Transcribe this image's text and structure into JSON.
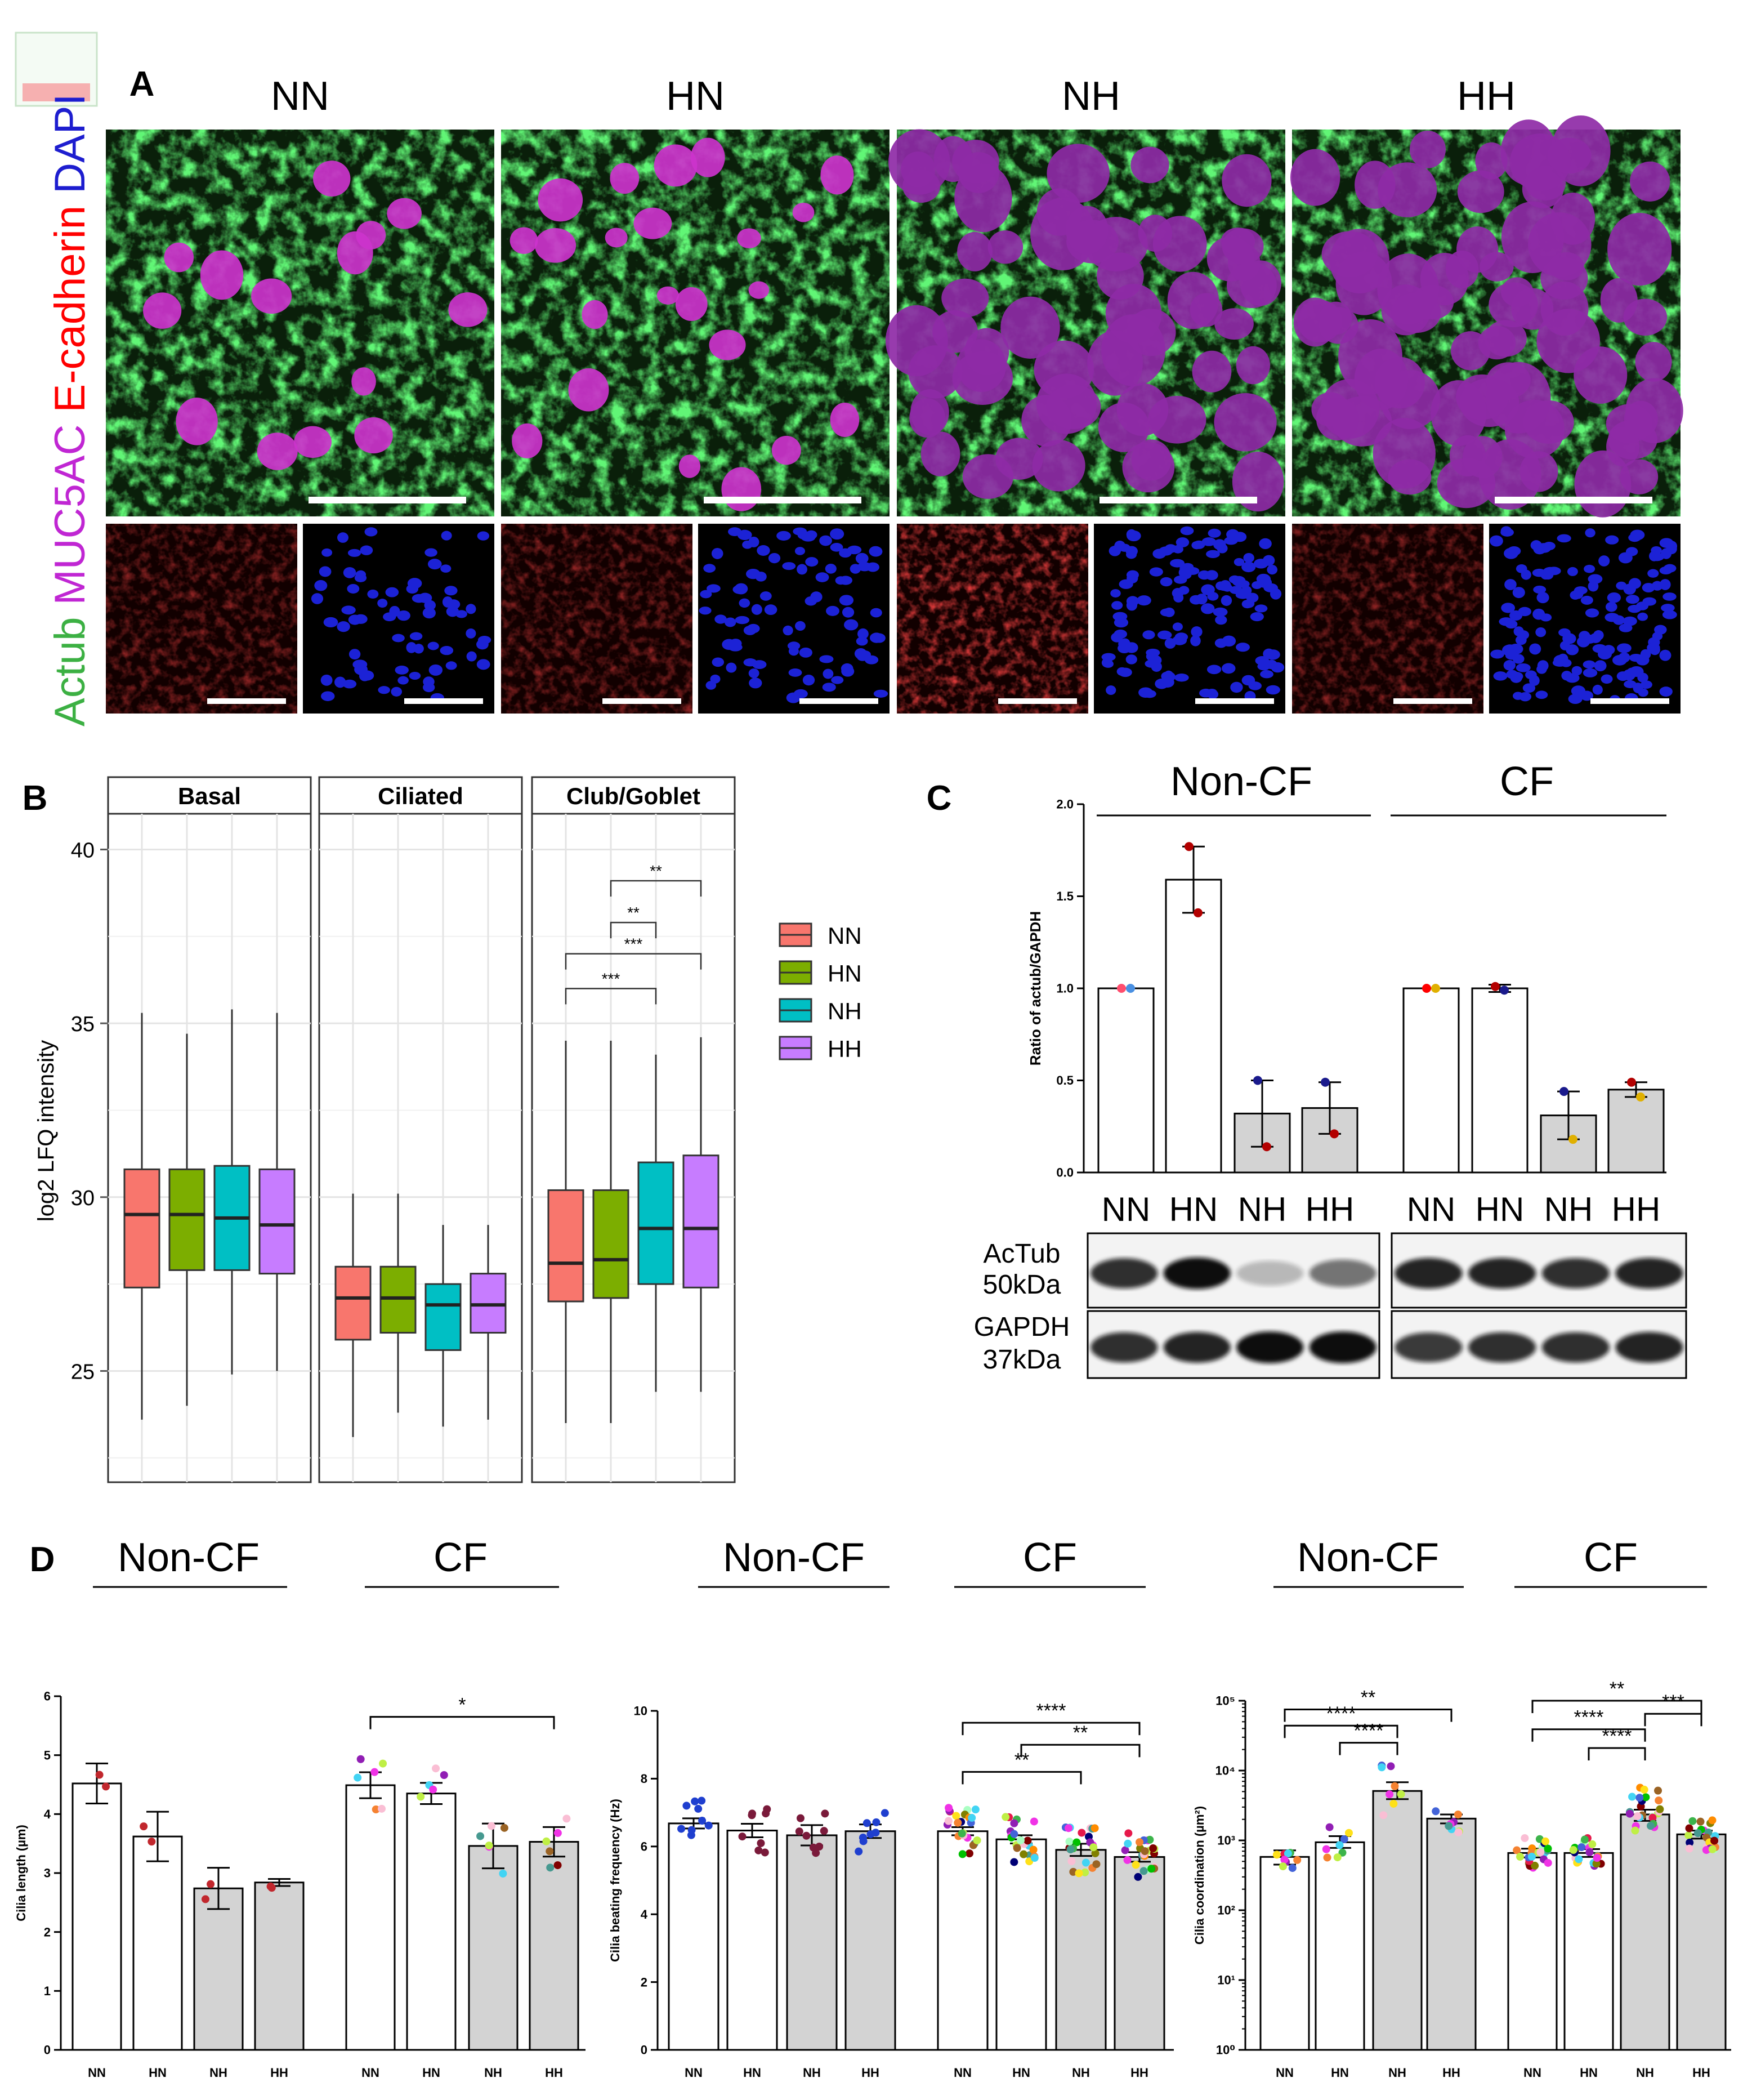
{
  "panelA": {
    "label": "A",
    "conditions": [
      "NN",
      "HN",
      "NH",
      "HH"
    ],
    "stain": {
      "actub": "Actub",
      "muc5ac": "MUC5AC",
      "ecad": "E-cadherin",
      "dapi": "DAPI"
    },
    "colors": {
      "actub": "#3cb043",
      "muc5ac": "#c026d3",
      "ecad": "#ff0000",
      "dapi": "#1d1dcf"
    }
  },
  "panelB": {
    "label": "B",
    "chart_data": {
      "type": "box",
      "facets": [
        "Basal",
        "Ciliated",
        "Club/Goblet"
      ],
      "groups": [
        "NN",
        "HN",
        "NH",
        "HH"
      ],
      "group_colors": [
        "#f8766d",
        "#7cae00",
        "#00bfc4",
        "#c77cff"
      ],
      "ylabel": "log2 LFQ intensity",
      "ylim": [
        21.8,
        42.0
      ],
      "yticks": [
        25,
        30,
        35,
        40
      ],
      "boxes": [
        [
          {
            "min": 23.6,
            "q1": 27.4,
            "median": 29.5,
            "q3": 30.8,
            "max": 35.3
          },
          {
            "min": 24.0,
            "q1": 27.9,
            "median": 29.5,
            "q3": 30.8,
            "max": 34.7
          },
          {
            "min": 24.9,
            "q1": 27.9,
            "median": 29.4,
            "q3": 30.9,
            "max": 35.4
          },
          {
            "min": 25.0,
            "q1": 27.8,
            "median": 29.2,
            "q3": 30.8,
            "max": 35.3
          }
        ],
        [
          {
            "min": 23.1,
            "q1": 25.9,
            "median": 27.1,
            "q3": 28.0,
            "max": 30.1
          },
          {
            "min": 23.8,
            "q1": 26.1,
            "median": 27.1,
            "q3": 28.0,
            "max": 30.1
          },
          {
            "min": 23.4,
            "q1": 25.6,
            "median": 26.9,
            "q3": 27.5,
            "max": 29.2
          },
          {
            "min": 23.6,
            "q1": 26.1,
            "median": 26.9,
            "q3": 27.8,
            "max": 29.2
          }
        ],
        [
          {
            "min": 23.5,
            "q1": 27.0,
            "median": 28.1,
            "q3": 30.2,
            "max": 34.5
          },
          {
            "min": 23.5,
            "q1": 27.1,
            "median": 28.2,
            "q3": 30.2,
            "max": 34.5
          },
          {
            "min": 24.4,
            "q1": 27.5,
            "median": 29.1,
            "q3": 31.0,
            "max": 34.1
          },
          {
            "min": 24.4,
            "q1": 27.4,
            "median": 29.1,
            "q3": 31.2,
            "max": 34.6
          }
        ]
      ],
      "significance": [
        {
          "facet": 2,
          "from": 0,
          "to": 2,
          "label": "***",
          "y": 36.0
        },
        {
          "facet": 2,
          "from": 0,
          "to": 3,
          "label": "***",
          "y": 37.0
        },
        {
          "facet": 2,
          "from": 1,
          "to": 2,
          "label": "**",
          "y": 37.9
        },
        {
          "facet": 2,
          "from": 1,
          "to": 3,
          "label": "**",
          "y": 39.1
        }
      ],
      "legend": [
        "NN",
        "HN",
        "NH",
        "HH"
      ]
    }
  },
  "panelC": {
    "label": "C",
    "group_labels": [
      "Non-CF",
      "CF"
    ],
    "chart_data": {
      "type": "bar",
      "ylabel": "Ratio of actub/GAPDH",
      "ylim": [
        0,
        2.0
      ],
      "yticks": [
        "0.0",
        "0.5",
        "1.0",
        "1.5",
        "2.0"
      ],
      "categories": [
        "NN",
        "HN",
        "NH",
        "HH",
        "NN",
        "HN",
        "NH",
        "HH"
      ],
      "values": [
        1.0,
        1.59,
        0.32,
        0.35,
        1.0,
        1.0,
        0.31,
        0.45
      ],
      "errors": [
        0,
        0.18,
        0.18,
        0.14,
        0,
        0.02,
        0.13,
        0.04
      ],
      "fills": [
        "#ffffff",
        "#ffffff",
        "#d3d3d3",
        "#d3d3d3",
        "#ffffff",
        "#ffffff",
        "#d3d3d3",
        "#d3d3d3"
      ],
      "points": [
        [
          1.0,
          1.0
        ],
        [
          1.77,
          1.41
        ],
        [
          0.5,
          0.14
        ],
        [
          0.49,
          0.21
        ],
        [
          1.0,
          1.0
        ],
        [
          1.01,
          0.99
        ],
        [
          0.44,
          0.18
        ],
        [
          0.49,
          0.41
        ]
      ],
      "point_colors": [
        [
          "#ff4d6d",
          "#4a90e2"
        ],
        [
          "#b30000",
          "#b30000"
        ],
        [
          "#1a1a8c",
          "#b30000"
        ],
        [
          "#1a1a8c",
          "#b30000"
        ],
        [
          "#ff0000",
          "#e0b000"
        ],
        [
          "#b30000",
          "#1a1a8c"
        ],
        [
          "#1a1a8c",
          "#e0b000"
        ],
        [
          "#b30000",
          "#e0b000"
        ]
      ]
    },
    "blot": {
      "row1": [
        "AcTub",
        "50kDa"
      ],
      "row2": [
        "GAPDH",
        "37kDa"
      ]
    }
  },
  "panelD": {
    "label": "D",
    "charts": [
      {
        "group_labels": [
          "Non-CF",
          "CF"
        ],
        "chart_data": {
          "type": "bar",
          "ylabel": "Cilia length (µm)",
          "ylim": [
            0,
            6
          ],
          "yticks": [
            "0",
            "1",
            "2",
            "3",
            "4",
            "5",
            "6"
          ],
          "categories": [
            "NN",
            "HN",
            "NH",
            "HH",
            "NN",
            "HN",
            "NH",
            "HH"
          ],
          "values": [
            4.52,
            3.62,
            2.74,
            2.84,
            4.49,
            4.35,
            3.46,
            3.53
          ],
          "errors": [
            0.34,
            0.42,
            0.35,
            0.06,
            0.22,
            0.18,
            0.38,
            0.25
          ],
          "fills": [
            "#ffffff",
            "#ffffff",
            "#d3d3d3",
            "#d3d3d3",
            "#ffffff",
            "#ffffff",
            "#d3d3d3",
            "#d3d3d3"
          ],
          "significance": [
            {
              "from": 4,
              "to": 7,
              "label": "*",
              "y": 5.65
            }
          ]
        }
      },
      {
        "group_labels": [
          "Non-CF",
          "CF"
        ],
        "chart_data": {
          "type": "bar",
          "ylabel": "Cilia beating frequency (Hz)",
          "ylim": [
            0,
            10
          ],
          "yticks": [
            "0",
            "2",
            "4",
            "6",
            "8",
            "10"
          ],
          "categories": [
            "NN",
            "HN",
            "NH",
            "HH",
            "NN",
            "HN",
            "NH",
            "HH"
          ],
          "values": [
            6.68,
            6.47,
            6.33,
            6.45,
            6.45,
            6.21,
            5.9,
            5.69
          ],
          "errors": [
            0.15,
            0.2,
            0.3,
            0.2,
            0.12,
            0.12,
            0.18,
            0.14
          ],
          "fills": [
            "#ffffff",
            "#ffffff",
            "#d3d3d3",
            "#d3d3d3",
            "#ffffff",
            "#ffffff",
            "#d3d3d3",
            "#d3d3d3"
          ],
          "significance": [
            {
              "from": 4,
              "to": 6,
              "label": "**",
              "y": 8.2
            },
            {
              "from": 5,
              "to": 7,
              "label": "**",
              "y": 9.0
            },
            {
              "from": 4,
              "to": 7,
              "label": "****",
              "y": 9.65
            }
          ]
        }
      },
      {
        "group_labels": [
          "Non-CF",
          "CF"
        ],
        "chart_data": {
          "type": "bar",
          "yscale": "log",
          "ylabel": "Cilia coordination (µm²)",
          "ylim": [
            1,
            100000
          ],
          "yticks": [
            "10⁰",
            "10¹",
            "10²",
            "10³",
            "10⁴",
            "10⁵"
          ],
          "categories": [
            "NN",
            "HN",
            "NH",
            "HH",
            "NN",
            "HN",
            "NH",
            "HH"
          ],
          "values": [
            580,
            940,
            5100,
            2050,
            660,
            660,
            2350,
            1220
          ],
          "errors_low": [
            450,
            780,
            3900,
            1750,
            570,
            580,
            1900,
            1060
          ],
          "errors_high": [
            720,
            1150,
            6800,
            2350,
            760,
            750,
            2750,
            1380
          ],
          "fills": [
            "#ffffff",
            "#ffffff",
            "#d3d3d3",
            "#d3d3d3",
            "#ffffff",
            "#ffffff",
            "#d3d3d3",
            "#d3d3d3"
          ],
          "significance": [
            {
              "from": 1,
              "to": 2,
              "label": "****",
              "y": 25000
            },
            {
              "from": 0,
              "to": 2,
              "label": "****",
              "y": 44000
            },
            {
              "from": 0,
              "to": 3,
              "label": "**",
              "y": 75000
            },
            {
              "from": 5,
              "to": 6,
              "label": "****",
              "y": 21000
            },
            {
              "from": 4,
              "to": 6,
              "label": "****",
              "y": 39000
            },
            {
              "from": 6,
              "to": 7,
              "label": "***",
              "y": 65000
            },
            {
              "from": 4,
              "to": 7,
              "label": "**",
              "y": 100000
            }
          ]
        }
      }
    ],
    "dot_colors": [
      "#e6194b",
      "#3cb44b",
      "#ffe119",
      "#4363d8",
      "#f58231",
      "#911eb4",
      "#42d4f4",
      "#f032e6",
      "#bfef45",
      "#fabed4",
      "#469990",
      "#9a6324",
      "#800000",
      "#aaffc3",
      "#808000",
      "#000075",
      "#ff8c00",
      "#00c000"
    ]
  }
}
